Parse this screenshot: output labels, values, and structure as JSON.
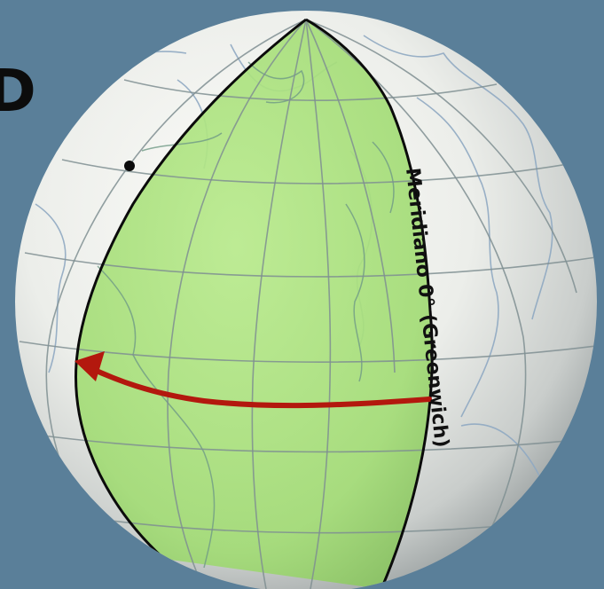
{
  "figure": {
    "panel_letter": "D",
    "meridian_label": "Meridiano 0° (Greenwich)"
  },
  "colors": {
    "background": "#5a7f99",
    "globe_light": "#f2f2ee",
    "globe_shadow": "#a9aeae",
    "highlight_region": "#a6e07a",
    "grid_lines": "#7f8f92",
    "meridian_lines": "#0b0b0b",
    "arrow": "#b3180e",
    "coastline": "#8fa9c2"
  },
  "icons": {
    "arrow": "arrow-left-curved",
    "point": "black-dot"
  }
}
